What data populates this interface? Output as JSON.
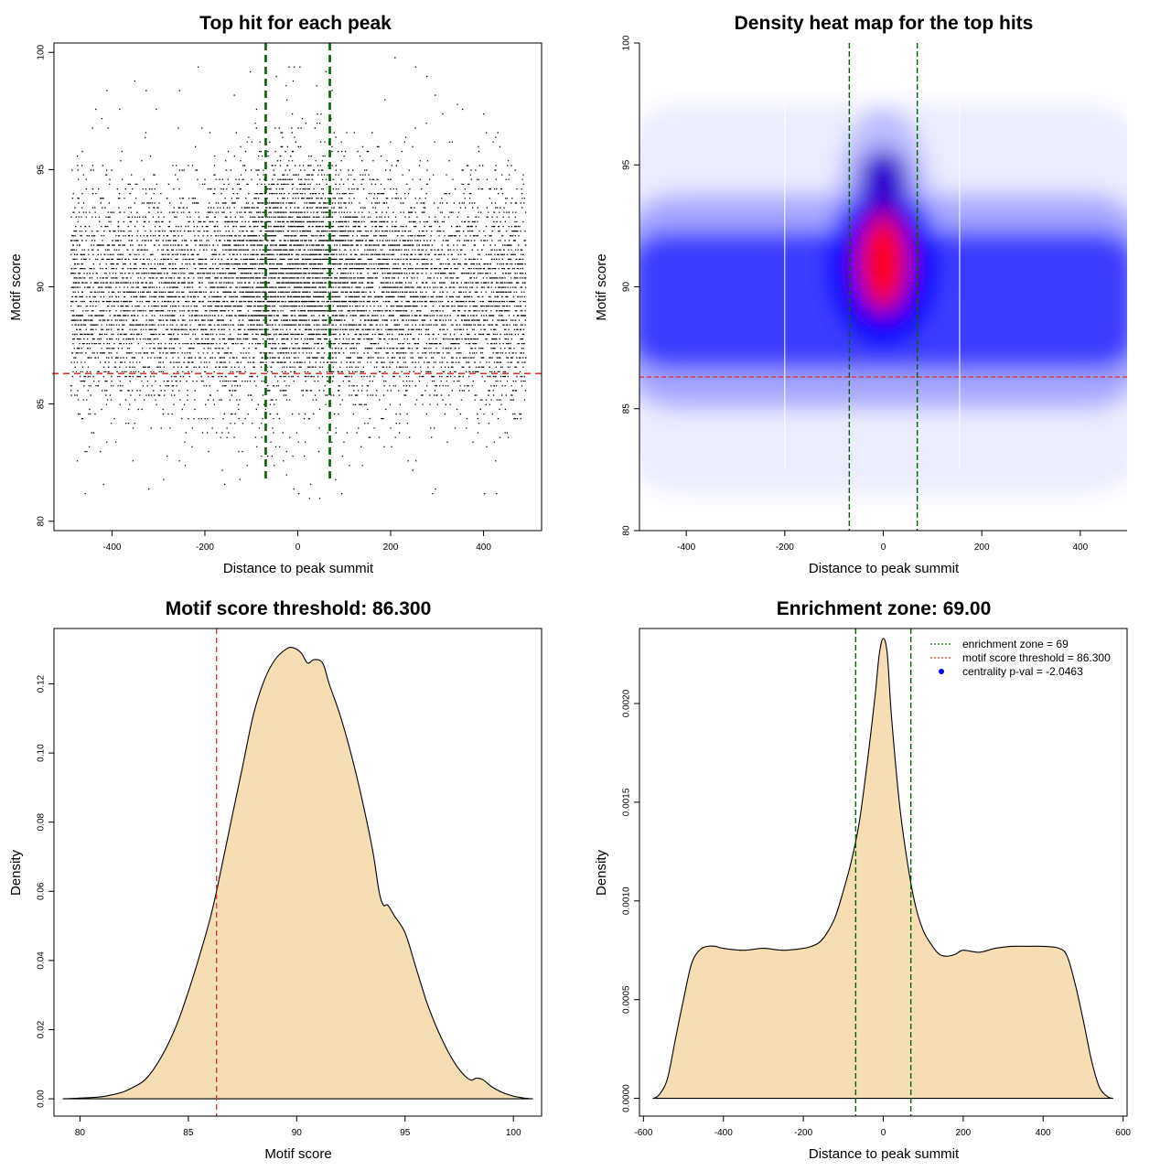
{
  "colors": {
    "threshold_line": "#e03030",
    "zone_line": "#006400",
    "density_fill": "#f5deb3",
    "points": "#000000",
    "heat_low": "#ffffff",
    "heat_mid": "#0000ff",
    "heat_high": "#ff0000",
    "legend_dot": "#0000ff"
  },
  "chart_data": [
    {
      "id": "scatter",
      "type": "scatter",
      "title": "Top hit for each peak",
      "xlabel": "Distance to peak summit",
      "ylabel": "Motif score",
      "xlim": [
        -525,
        525
      ],
      "ylim": [
        79.6,
        100.4
      ],
      "xticks": [
        -400,
        -200,
        0,
        200,
        400
      ],
      "yticks": [
        80,
        85,
        90,
        95,
        100
      ],
      "point_x_range": [
        -490,
        490
      ],
      "point_y_range": [
        81,
        100
      ],
      "threshold": 86.3,
      "enrichment_zone": [
        -69,
        69
      ],
      "grid": false
    },
    {
      "id": "heatmap",
      "type": "heatmap",
      "title": "Density heat map for the top hits",
      "xlabel": "Distance to peak summit",
      "ylabel": "Motif score",
      "xlim": [
        -495,
        495
      ],
      "ylim": [
        80,
        100
      ],
      "xticks": [
        -400,
        -200,
        0,
        200,
        400
      ],
      "yticks": [
        80,
        85,
        90,
        95,
        100
      ],
      "threshold": 86.3,
      "enrichment_zone": [
        -69,
        69
      ],
      "hotspot": {
        "x": 0,
        "y": 91
      },
      "grid": false
    },
    {
      "id": "score_density",
      "type": "area",
      "title": "Motif score threshold: 86.300",
      "xlabel": "Motif score",
      "ylabel": "Density",
      "xlim": [
        78.8,
        101.3
      ],
      "ylim": [
        -0.005,
        0.136
      ],
      "xticks": [
        80,
        85,
        90,
        95,
        100
      ],
      "yticks": [
        0.0,
        0.02,
        0.04,
        0.06,
        0.08,
        0.1,
        0.12
      ],
      "ytick_labels": [
        "0.00",
        "0.02",
        "0.04",
        "0.06",
        "0.08",
        "0.10",
        "0.12"
      ],
      "threshold": 86.3,
      "x": [
        79.2,
        80,
        81,
        81.5,
        82,
        82.5,
        83,
        83.5,
        84,
        84.5,
        85,
        85.5,
        86,
        86.3,
        86.5,
        87,
        87.5,
        88,
        88.5,
        89,
        89.5,
        89.8,
        90.2,
        90.5,
        90.8,
        91.2,
        91.5,
        92,
        92.5,
        93,
        93.5,
        93.8,
        94,
        94.2,
        94.5,
        95,
        95.5,
        96,
        96.5,
        97,
        97.5,
        98,
        98.3,
        98.6,
        99,
        99.5,
        100,
        100.5,
        100.9
      ],
      "y": [
        0.0,
        0.0002,
        0.0006,
        0.0012,
        0.002,
        0.0035,
        0.0055,
        0.0095,
        0.015,
        0.022,
        0.031,
        0.041,
        0.052,
        0.06,
        0.066,
        0.081,
        0.096,
        0.111,
        0.121,
        0.127,
        0.13,
        0.1305,
        0.129,
        0.126,
        0.127,
        0.126,
        0.12,
        0.111,
        0.1,
        0.087,
        0.072,
        0.06,
        0.056,
        0.056,
        0.053,
        0.048,
        0.038,
        0.028,
        0.02,
        0.0135,
        0.0085,
        0.0055,
        0.006,
        0.0055,
        0.0035,
        0.0018,
        0.0008,
        0.0002,
        0.0
      ]
    },
    {
      "id": "distance_density",
      "type": "area",
      "title": "Enrichment zone: 69.00",
      "xlabel": "Distance to peak summit",
      "ylabel": "Density",
      "xlim": [
        -610,
        610
      ],
      "ylim": [
        -9e-05,
        0.00238
      ],
      "xticks": [
        -600,
        -400,
        -200,
        0,
        200,
        400,
        600
      ],
      "yticks": [
        0.0,
        0.0005,
        0.001,
        0.0015,
        0.002
      ],
      "ytick_labels": [
        "0.0000",
        "0.0005",
        "0.0010",
        "0.0015",
        "0.0020"
      ],
      "enrichment_zone": [
        -69,
        69
      ],
      "x": [
        -575,
        -560,
        -540,
        -520,
        -500,
        -480,
        -460,
        -440,
        -420,
        -400,
        -350,
        -300,
        -250,
        -200,
        -180,
        -160,
        -140,
        -120,
        -100,
        -80,
        -60,
        -40,
        -20,
        -10,
        0,
        10,
        20,
        40,
        60,
        80,
        100,
        120,
        140,
        160,
        180,
        200,
        240,
        280,
        320,
        360,
        400,
        440,
        460,
        480,
        500,
        520,
        540,
        560,
        575
      ],
      "y": [
        0.0,
        2e-05,
        0.0001,
        0.0003,
        0.0005,
        0.00068,
        0.00075,
        0.00077,
        0.00077,
        0.00076,
        0.00075,
        0.00076,
        0.00075,
        0.00076,
        0.00077,
        0.00079,
        0.00084,
        0.00092,
        0.00105,
        0.0012,
        0.0014,
        0.0017,
        0.00205,
        0.00225,
        0.00233,
        0.00225,
        0.00195,
        0.0015,
        0.0012,
        0.00098,
        0.00085,
        0.00078,
        0.00073,
        0.00072,
        0.00073,
        0.00075,
        0.00074,
        0.00076,
        0.00077,
        0.00077,
        0.00077,
        0.00076,
        0.00072,
        0.00058,
        0.0004,
        0.0002,
        6e-05,
        1e-05,
        0.0
      ],
      "legend": [
        {
          "symbol": "line",
          "color": "#006400",
          "label": "enrichment zone = 69"
        },
        {
          "symbol": "line",
          "color": "#e03030",
          "label": "motif score threshold = 86.300"
        },
        {
          "symbol": "dot",
          "color": "#0000ff",
          "label": "centrality p-val = -2.0463"
        }
      ],
      "legend_position": "top-right"
    }
  ]
}
